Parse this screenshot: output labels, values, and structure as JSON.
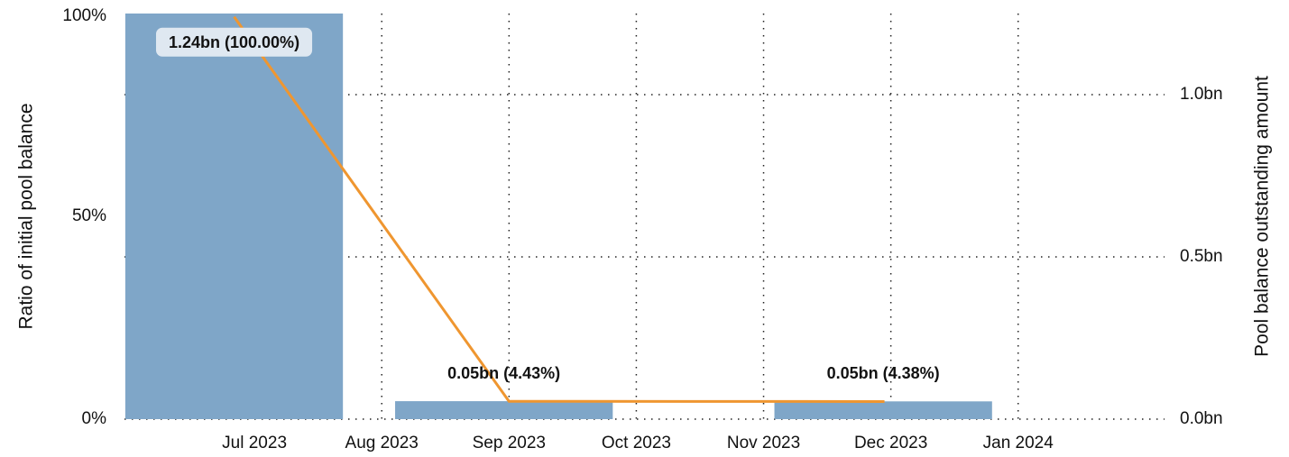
{
  "chart_data": {
    "type": "combo",
    "ylabel": "Ratio of initial pool balance",
    "y2label": "Pool balance outstanding amount",
    "xlim": [
      6,
      14.15
    ],
    "xticks": [
      {
        "value": 7,
        "label": "Jul 2023"
      },
      {
        "value": 8,
        "label": "Aug 2023"
      },
      {
        "value": 9,
        "label": "Sep 2023"
      },
      {
        "value": 10,
        "label": "Oct 2023"
      },
      {
        "value": 11,
        "label": "Nov 2023"
      },
      {
        "value": 12,
        "label": "Dec 2023"
      },
      {
        "value": 13,
        "label": "Jan 2024"
      }
    ],
    "ylim": [
      0,
      100
    ],
    "yticks": [
      {
        "value": 0,
        "label": "0%"
      },
      {
        "value": 50,
        "label": "50%"
      },
      {
        "value": 100,
        "label": "100%"
      }
    ],
    "y2lim": [
      0,
      1.25
    ],
    "y2ticks": [
      {
        "value": 0,
        "label": "0.0bn"
      },
      {
        "value": 0.5,
        "label": "0.5bn"
      },
      {
        "value": 1,
        "label": "1.0bn"
      }
    ],
    "grid": true,
    "series": [
      {
        "type": "bar",
        "color": "#7fa6c8",
        "x": [
          6.84,
          8.96,
          11.94
        ],
        "values": [
          100,
          4.43,
          4.38
        ],
        "value_labels": [
          "1.24bn (100.00%)",
          "0.05bn (4.43%)",
          "0.05bn (4.38%)"
        ]
      },
      {
        "type": "line",
        "axis": "y2",
        "color": "#ef9630",
        "x": [
          6.84,
          9.0,
          11.95
        ],
        "values": [
          1.24,
          0.0549,
          0.0543
        ]
      }
    ]
  }
}
